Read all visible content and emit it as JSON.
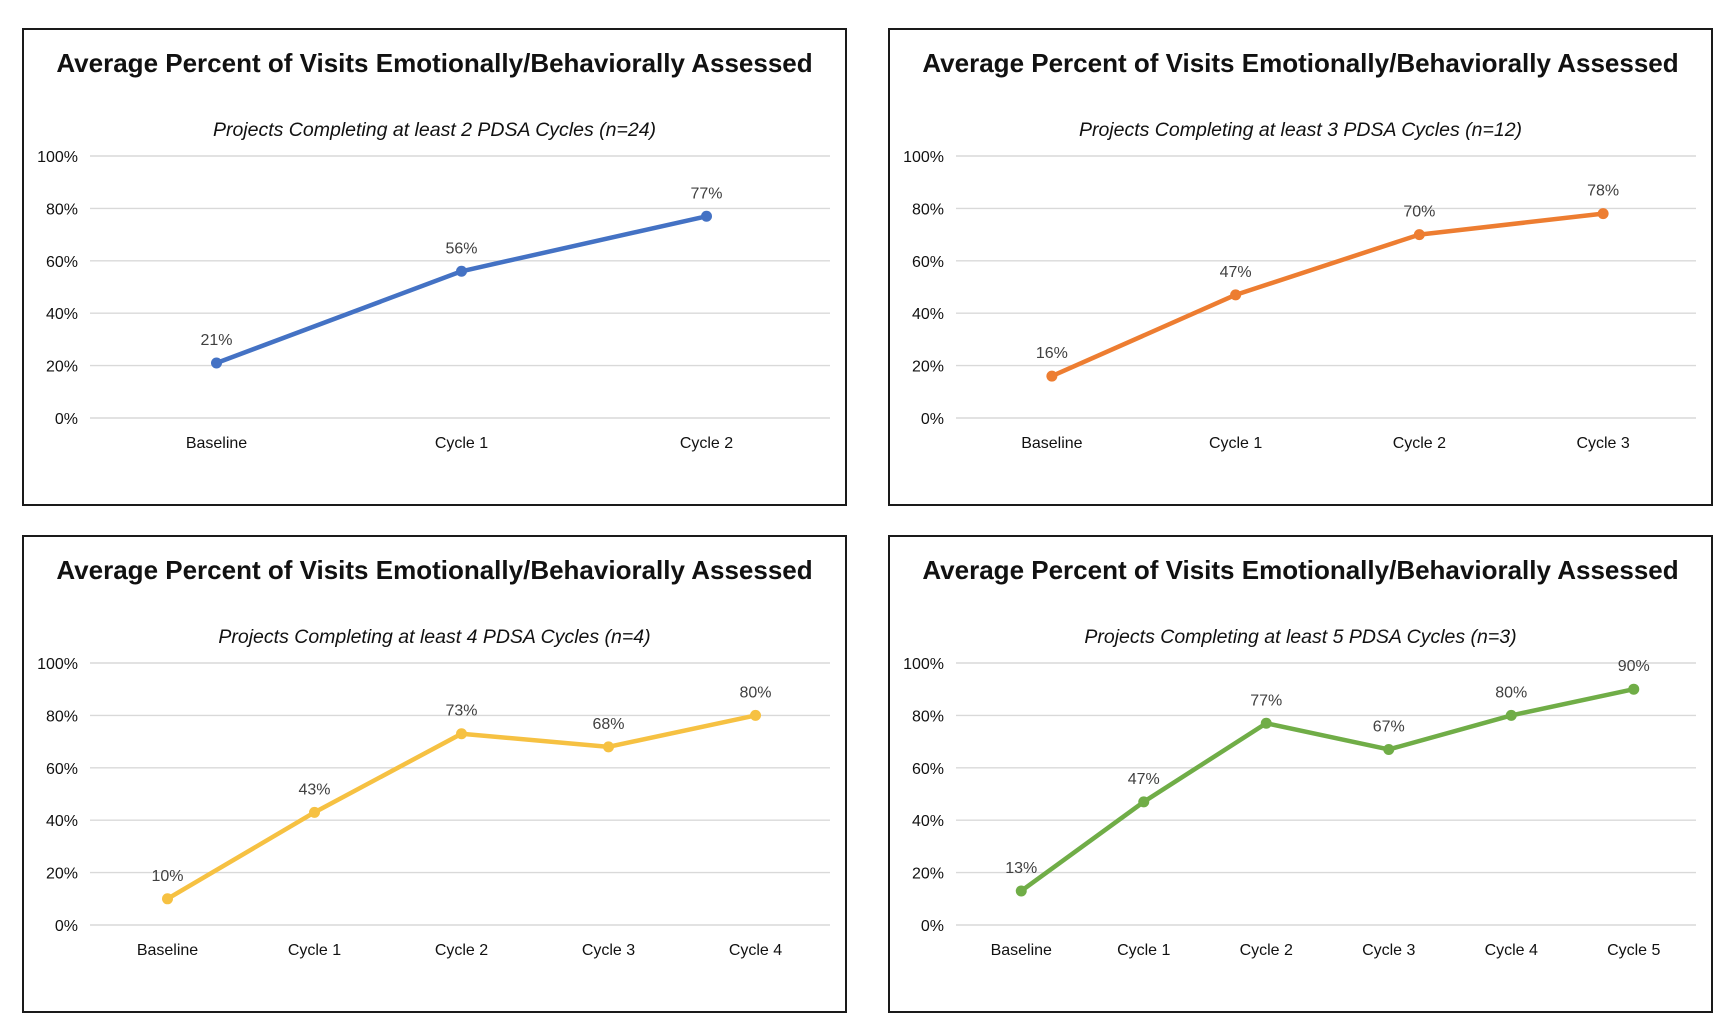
{
  "chart_data": [
    {
      "type": "line",
      "title": "Average Percent of Visits Emotionally/Behaviorally Assessed",
      "subtitle": "Projects Completing at least 2 PDSA Cycles (n=24)",
      "categories": [
        "Baseline",
        "Cycle 1",
        "Cycle 2"
      ],
      "values": [
        21,
        56,
        77
      ],
      "data_labels": [
        "21%",
        "56%",
        "77%"
      ],
      "y_ticks": [
        "0%",
        "20%",
        "40%",
        "60%",
        "80%",
        "100%"
      ],
      "ylim": [
        0,
        100
      ],
      "grid": true,
      "legend": "none",
      "color": "#4472C4"
    },
    {
      "type": "line",
      "title": "Average Percent of Visits Emotionally/Behaviorally Assessed",
      "subtitle": "Projects Completing at least 3 PDSA Cycles (n=12)",
      "categories": [
        "Baseline",
        "Cycle 1",
        "Cycle 2",
        "Cycle 3"
      ],
      "values": [
        16,
        47,
        70,
        78
      ],
      "data_labels": [
        "16%",
        "47%",
        "70%",
        "78%"
      ],
      "y_ticks": [
        "0%",
        "20%",
        "40%",
        "60%",
        "80%",
        "100%"
      ],
      "ylim": [
        0,
        100
      ],
      "grid": true,
      "legend": "none",
      "color": "#ED7D31"
    },
    {
      "type": "line",
      "title": "Average Percent of Visits Emotionally/Behaviorally Assessed",
      "subtitle": "Projects Completing at least 4 PDSA Cycles (n=4)",
      "categories": [
        "Baseline",
        "Cycle 1",
        "Cycle 2",
        "Cycle 3",
        "Cycle 4"
      ],
      "values": [
        10,
        43,
        73,
        68,
        80
      ],
      "data_labels": [
        "10%",
        "43%",
        "73%",
        "68%",
        "80%"
      ],
      "y_ticks": [
        "0%",
        "20%",
        "40%",
        "60%",
        "80%",
        "100%"
      ],
      "ylim": [
        0,
        100
      ],
      "grid": true,
      "legend": "none",
      "color": "#F6C142"
    },
    {
      "type": "line",
      "title": "Average Percent of Visits Emotionally/Behaviorally Assessed",
      "subtitle": "Projects Completing at least 5 PDSA Cycles (n=3)",
      "categories": [
        "Baseline",
        "Cycle 1",
        "Cycle 2",
        "Cycle 3",
        "Cycle 4",
        "Cycle 5"
      ],
      "values": [
        13,
        47,
        77,
        67,
        80,
        90
      ],
      "data_labels": [
        "13%",
        "47%",
        "77%",
        "67%",
        "80%",
        "90%"
      ],
      "y_ticks": [
        "0%",
        "20%",
        "40%",
        "60%",
        "80%",
        "100%"
      ],
      "ylim": [
        0,
        100
      ],
      "grid": true,
      "legend": "none",
      "color": "#70AD47"
    }
  ]
}
